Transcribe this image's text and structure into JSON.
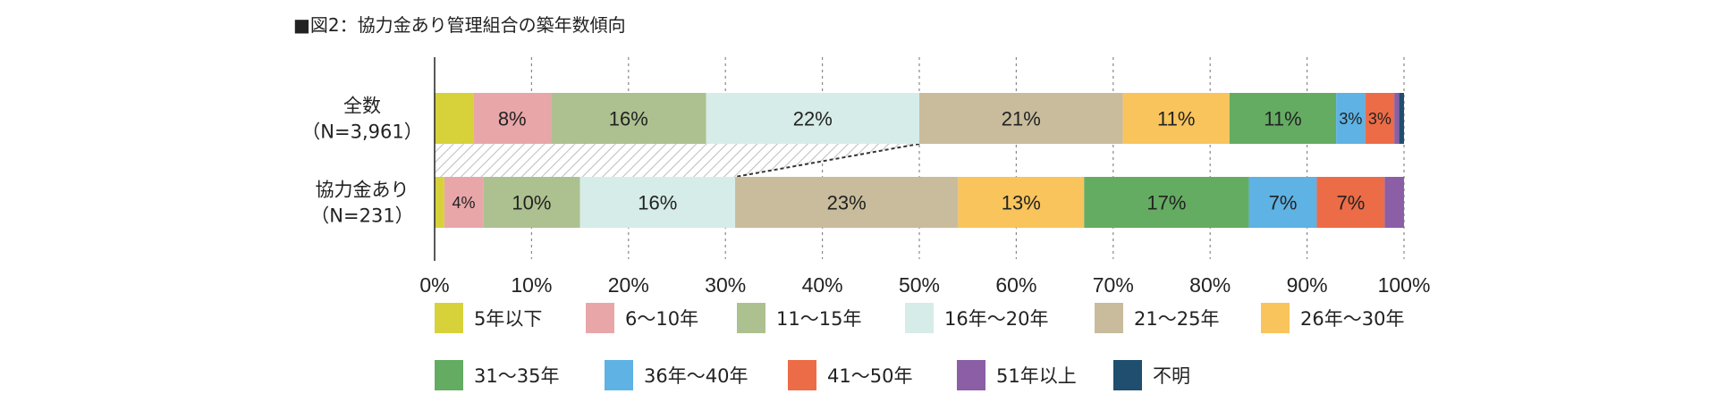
{
  "chart_data": {
    "type": "bar",
    "orientation": "horizontal",
    "stacked": true,
    "percent": true,
    "title": "■図2：協力金あり管理組合の築年数傾向",
    "xlim": [
      0,
      100
    ],
    "x_ticks": [
      "0%",
      "10%",
      "20%",
      "30%",
      "40%",
      "50%",
      "60%",
      "70%",
      "80%",
      "90%",
      "100%"
    ],
    "grid": "vertical-dashed",
    "legend_position": "bottom",
    "rows": [
      {
        "label_line1": "全数",
        "label_line2": "（N=3,961）"
      },
      {
        "label_line1": "協力金あり",
        "label_line2": "（N=231）"
      }
    ],
    "series": [
      {
        "name": "5年以下",
        "color": "#d7d23a",
        "values": [
          4,
          1
        ],
        "labels": [
          "",
          ""
        ]
      },
      {
        "name": "6～10年",
        "color": "#e8a6a8",
        "values": [
          8,
          4
        ],
        "labels": [
          "8%",
          "4%"
        ]
      },
      {
        "name": "11～15年",
        "color": "#adc190",
        "values": [
          16,
          10
        ],
        "labels": [
          "16%",
          "10%"
        ]
      },
      {
        "name": "16年～20年",
        "color": "#d6ece8",
        "values": [
          22,
          16
        ],
        "labels": [
          "22%",
          "16%"
        ]
      },
      {
        "name": "21～25年",
        "color": "#c9bc9c",
        "values": [
          21,
          23
        ],
        "labels": [
          "21%",
          "23%"
        ]
      },
      {
        "name": "26年～30年",
        "color": "#f8c45b",
        "values": [
          11,
          13
        ],
        "labels": [
          "11%",
          "13%"
        ]
      },
      {
        "name": "31～35年",
        "color": "#64ac62",
        "values": [
          11,
          17
        ],
        "labels": [
          "11%",
          "17%"
        ]
      },
      {
        "name": "36年～40年",
        "color": "#5eb2e4",
        "values": [
          3,
          7
        ],
        "labels": [
          "3%",
          "7%"
        ]
      },
      {
        "name": "41～50年",
        "color": "#ec6c47",
        "values": [
          3,
          7
        ],
        "labels": [
          "3%",
          "7%"
        ]
      },
      {
        "name": "51年以上",
        "color": "#8b5ea6",
        "values": [
          0.5,
          2
        ],
        "labels": [
          "",
          ""
        ]
      },
      {
        "name": "不明",
        "color": "#1f4e6e",
        "values": [
          0.5,
          0
        ],
        "labels": [
          "",
          ""
        ]
      }
    ]
  }
}
